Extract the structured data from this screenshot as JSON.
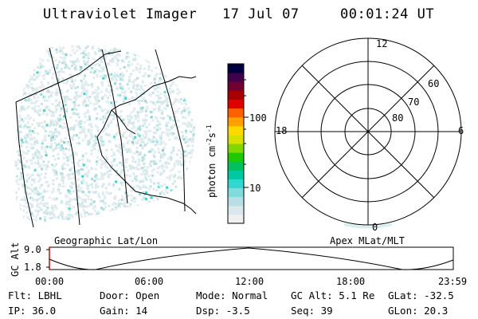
{
  "header": {
    "title": "Ultraviolet Imager",
    "date": "17 Jul 07",
    "time": "00:01:24 UT"
  },
  "colorbar": {
    "unit": "photon cm",
    "exp1": "-2",
    "mid": "s",
    "exp2": "-1",
    "label_100": "100",
    "label_10": "10",
    "colors": [
      "#f0f0f0",
      "#d8e8ec",
      "#b8e0e4",
      "#80dcdc",
      "#30d8d0",
      "#00c8a0",
      "#00c060",
      "#20c800",
      "#80d800",
      "#d8e000",
      "#ffd800",
      "#ffa000",
      "#ff6000",
      "#e00000",
      "#a80000",
      "#700030",
      "#40004a",
      "#000040"
    ]
  },
  "polar": {
    "labels": {
      "top": "12",
      "left": "18",
      "right": "6",
      "bottom": "0"
    },
    "rings": [
      "60",
      "70",
      "80"
    ]
  },
  "captions": {
    "left": "Geographic Lat/Lon",
    "right": "Apex MLat/MLT"
  },
  "altplot": {
    "ylabel": "GC Alt",
    "ymax": "9.0",
    "ymin": "1.8",
    "xticks": [
      "00:00",
      "06:00",
      "12:00",
      "18:00",
      "23:59"
    ]
  },
  "info": {
    "row1": [
      "Flt: LBHL",
      "Door: Open",
      "Mode: Normal",
      "GC Alt: 5.1 Re",
      "GLat: -32.5"
    ],
    "row2": [
      "IP: 36.0",
      "Gain: 14",
      "Dsp:   -3.5",
      "Seq: 39",
      "GLon:  20.3"
    ]
  }
}
